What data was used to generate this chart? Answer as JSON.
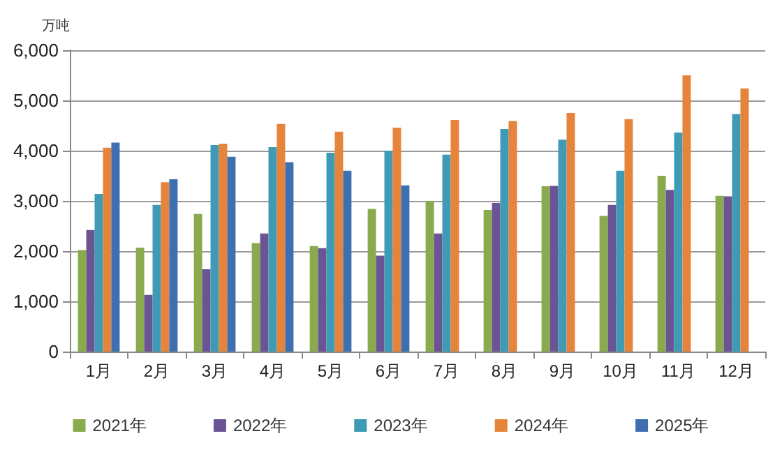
{
  "chart_data": {
    "type": "bar",
    "ylabel": "万吨",
    "categories": [
      "1月",
      "2月",
      "3月",
      "4月",
      "5月",
      "6月",
      "7月",
      "8月",
      "9月",
      "10月",
      "11月",
      "12月"
    ],
    "series": [
      {
        "name": "2021年",
        "color": "#8aaa4e",
        "values": [
          2020,
          2070,
          2740,
          2160,
          2100,
          2840,
          3000,
          2820,
          3290,
          2700,
          3500,
          3100
        ]
      },
      {
        "name": "2022年",
        "color": "#6b5494",
        "values": [
          2420,
          1130,
          1640,
          2350,
          2060,
          1910,
          2350,
          2960,
          3300,
          2920,
          3220,
          3090
        ]
      },
      {
        "name": "2023年",
        "color": "#3e9ab5",
        "values": [
          3140,
          2920,
          4110,
          4070,
          3960,
          4000,
          3920,
          4430,
          4220,
          3600,
          4360,
          4730
        ]
      },
      {
        "name": "2024年",
        "color": "#e5843a",
        "values": [
          4060,
          3370,
          4140,
          4530,
          4380,
          4460,
          4610,
          4590,
          4750,
          4630,
          5500,
          5240
        ]
      },
      {
        "name": "2025年",
        "color": "#3e6fb0",
        "values": [
          4160,
          3430,
          3880,
          3770,
          3600,
          3310,
          null,
          null,
          null,
          null,
          null,
          null
        ]
      }
    ],
    "ylim": [
      0,
      6000
    ],
    "yticks": [
      0,
      {
        "value": 1000,
        "label": "1,000"
      },
      {
        "value": 2000,
        "label": "2,000"
      },
      {
        "value": 3000,
        "label": "3,000"
      },
      {
        "value": 4000,
        "label": "4,000"
      },
      {
        "value": 5000,
        "label": "5,000"
      },
      {
        "value": 6000,
        "label": "6,000"
      }
    ],
    "grid": "y",
    "legend": "bottom"
  }
}
